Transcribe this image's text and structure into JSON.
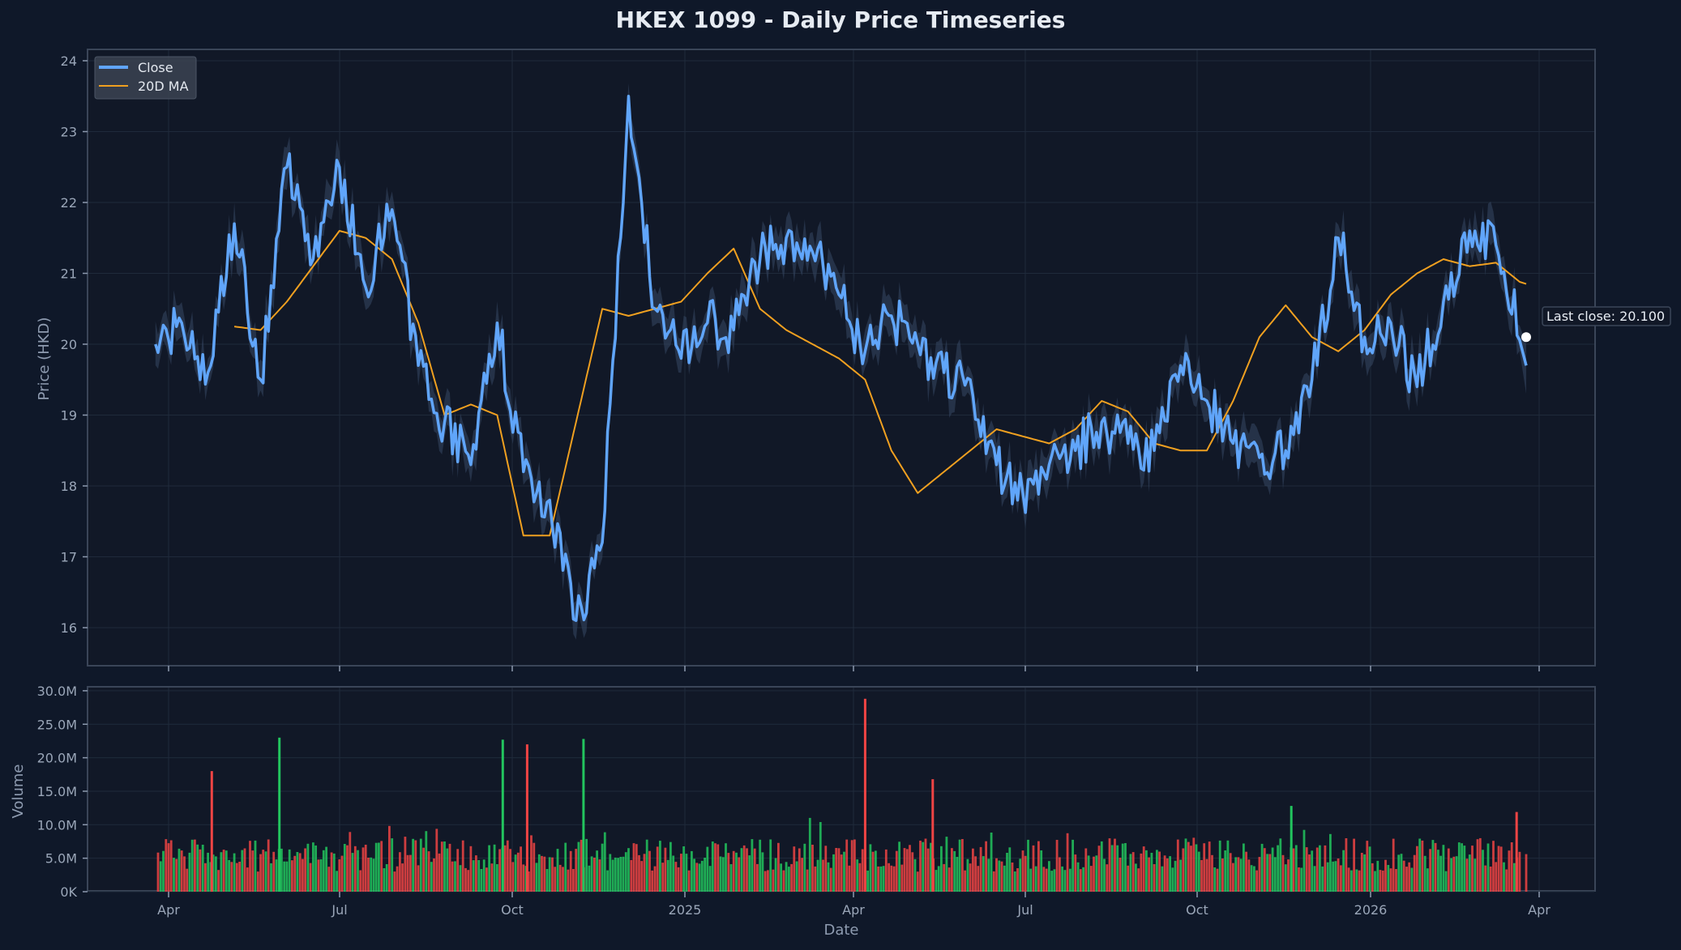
{
  "title": "HKEX 1099 - Daily Price Timeseries",
  "colors": {
    "background": "#0f1829",
    "plot_bg": "#111827",
    "close": "#60a5fa",
    "ma": "#f0a020",
    "band": "#33445f",
    "up": "#22c55e",
    "down": "#ef4444",
    "grid": "#1f2a3b",
    "spine": "#3a4558"
  },
  "legend": {
    "items": [
      {
        "label": "Close",
        "color": "#60a5fa"
      },
      {
        "label": "20D MA",
        "color": "#f0a020"
      }
    ]
  },
  "annotation": {
    "label": "Last close: 20.100",
    "value": 20.1
  },
  "chart_data": [
    {
      "type": "line",
      "title": "HKEX 1099 - Daily Price Timeseries",
      "xlabel": "",
      "ylabel": "Price (HKD)",
      "ylim": [
        15.5,
        24.2
      ],
      "yticks": [
        16,
        17,
        18,
        19,
        20,
        21,
        22,
        23,
        24
      ],
      "xticks": [
        "Apr",
        "Jul",
        "Oct",
        "2025",
        "Apr",
        "Jul",
        "Oct",
        "2026",
        "Apr"
      ],
      "grid": true,
      "legend_position": "upper left",
      "x": [
        "2024-03-25",
        "2024-04-08",
        "2024-04-22",
        "2024-05-06",
        "2024-05-20",
        "2024-06-03",
        "2024-06-17",
        "2024-07-01",
        "2024-07-15",
        "2024-07-29",
        "2024-08-12",
        "2024-08-26",
        "2024-09-09",
        "2024-09-23",
        "2024-10-07",
        "2024-10-21",
        "2024-11-04",
        "2024-11-18",
        "2024-12-02",
        "2024-12-16",
        "2024-12-30",
        "2025-01-13",
        "2025-01-27",
        "2025-02-10",
        "2025-02-24",
        "2025-03-10",
        "2025-03-24",
        "2025-04-07",
        "2025-04-21",
        "2025-05-05",
        "2025-05-19",
        "2025-06-02",
        "2025-06-16",
        "2025-06-30",
        "2025-07-14",
        "2025-07-28",
        "2025-08-11",
        "2025-08-25",
        "2025-09-08",
        "2025-09-22",
        "2025-10-06",
        "2025-10-20",
        "2025-11-03",
        "2025-11-17",
        "2025-12-01",
        "2025-12-15",
        "2025-12-29",
        "2026-01-12",
        "2026-01-26",
        "2026-02-09",
        "2026-02-23",
        "2026-03-09",
        "2026-03-23"
      ],
      "series": [
        {
          "name": "Close",
          "values": [
            20.0,
            20.3,
            19.6,
            21.7,
            19.5,
            22.5,
            21.2,
            22.5,
            20.8,
            21.9,
            19.7,
            18.9,
            18.3,
            20.3,
            18.2,
            17.8,
            16.1,
            17.2,
            23.5,
            20.5,
            19.8,
            20.3,
            20.2,
            21.2,
            21.5,
            21.3,
            20.7,
            19.9,
            20.4,
            20.0,
            19.6,
            19.5,
            18.3,
            17.9,
            18.3,
            18.5,
            18.9,
            18.6,
            18.5,
            19.7,
            19.2,
            18.6,
            18.4,
            18.5,
            19.5,
            21.5,
            20.1,
            20.3,
            19.4,
            20.6,
            21.6,
            21.4,
            20.1
          ]
        },
        {
          "name": "20D MA",
          "values": [
            null,
            null,
            null,
            20.25,
            20.2,
            20.6,
            21.1,
            21.6,
            21.5,
            21.2,
            20.3,
            19.0,
            19.15,
            19.0,
            17.3,
            17.3,
            18.9,
            20.5,
            20.4,
            20.5,
            20.6,
            21.0,
            21.35,
            20.5,
            20.2,
            20.0,
            19.8,
            19.5,
            18.5,
            17.9,
            18.2,
            18.5,
            18.8,
            18.7,
            18.6,
            18.8,
            19.2,
            19.05,
            18.6,
            18.5,
            18.5,
            19.2,
            20.1,
            20.55,
            20.1,
            19.9,
            20.2,
            20.7,
            21.0,
            21.2,
            21.1,
            21.15,
            20.85
          ]
        }
      ],
      "last_close": 20.1
    },
    {
      "type": "bar",
      "title": "",
      "xlabel": "Date",
      "ylabel": "Volume",
      "ylim": [
        0,
        30000000
      ],
      "yticks": [
        "0K",
        "5.0M",
        "10.0M",
        "15.0M",
        "20.0M",
        "25.0M",
        "30.0M"
      ],
      "xticks": [
        "Apr",
        "Jul",
        "Oct",
        "2025",
        "Apr",
        "Jul",
        "Oct",
        "2026",
        "Apr"
      ],
      "grid": true,
      "color_rule": "green when close rises, red when close falls",
      "notable_bars": [
        {
          "date": "2024-04-24",
          "volume": 18000000,
          "direction": "down"
        },
        {
          "date": "2024-05-30",
          "volume": 23000000,
          "direction": "up"
        },
        {
          "date": "2024-09-26",
          "volume": 22700000,
          "direction": "up"
        },
        {
          "date": "2024-10-09",
          "volume": 22000000,
          "direction": "down"
        },
        {
          "date": "2024-11-08",
          "volume": 22800000,
          "direction": "up"
        },
        {
          "date": "2025-04-07",
          "volume": 28800000,
          "direction": "down"
        },
        {
          "date": "2025-05-13",
          "volume": 16800000,
          "direction": "down"
        },
        {
          "date": "2025-11-20",
          "volume": 12800000,
          "direction": "up"
        },
        {
          "date": "2026-03-20",
          "volume": 11900000,
          "direction": "down"
        }
      ],
      "typical_range": [
        2000000,
        10000000
      ]
    }
  ],
  "axes": {
    "price": {
      "ylabel": "Price (HKD)",
      "yticks": [
        "16",
        "17",
        "18",
        "19",
        "20",
        "21",
        "22",
        "23",
        "24"
      ]
    },
    "volume": {
      "ylabel": "Volume",
      "yticks": [
        "0K",
        "5.0M",
        "10.0M",
        "15.0M",
        "20.0M",
        "25.0M",
        "30.0M"
      ],
      "xlabel": "Date",
      "xticks": [
        "Apr",
        "Jul",
        "Oct",
        "2025",
        "Apr",
        "Jul",
        "Oct",
        "2026",
        "Apr"
      ]
    }
  }
}
